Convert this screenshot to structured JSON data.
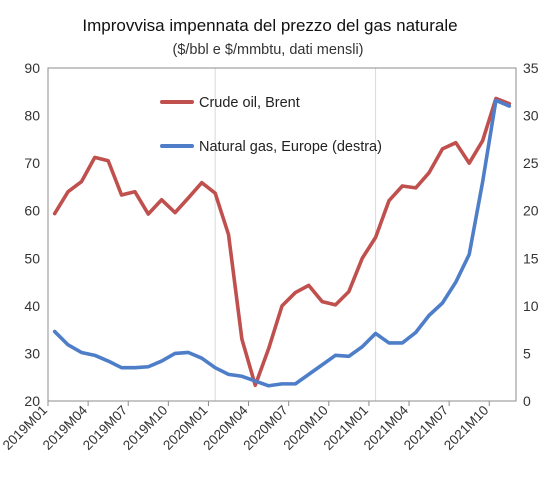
{
  "chart_data": {
    "type": "line",
    "title": "Improvvisa impennata del prezzo del gas naturale",
    "subtitle": "($/bbl e $/mmbtu, dati mensli)",
    "categories": [
      "2019M01",
      "2019M02",
      "2019M03",
      "2019M04",
      "2019M05",
      "2019M06",
      "2019M07",
      "2019M08",
      "2019M09",
      "2019M10",
      "2019M11",
      "2019M12",
      "2020M01",
      "2020M02",
      "2020M03",
      "2020M04",
      "2020M05",
      "2020M06",
      "2020M07",
      "2020M08",
      "2020M09",
      "2020M10",
      "2020M11",
      "2020M12",
      "2021M01",
      "2021M02",
      "2021M03",
      "2021M04",
      "2021M05",
      "2021M06",
      "2021M07",
      "2021M08",
      "2021M09",
      "2021M10",
      "2021M11"
    ],
    "x_tick_labels": [
      "2019M01",
      "2019M04",
      "2019M07",
      "2019M10",
      "2020M01",
      "2020M04",
      "2020M07",
      "2020M10",
      "2021M01",
      "2021M04",
      "2021M07",
      "2021M10"
    ],
    "y_left": {
      "ylim": [
        20,
        90
      ],
      "ticks": [
        "20",
        "30",
        "40",
        "50",
        "60",
        "70",
        "80",
        "90"
      ]
    },
    "y_right": {
      "ylim": [
        0,
        35
      ],
      "ticks": [
        "0",
        "5",
        "10",
        "15",
        "20",
        "25",
        "30",
        "35"
      ]
    },
    "series": [
      {
        "name": "Crude oil, Brent",
        "axis": "left",
        "color": "#c0504d",
        "values": [
          59.4,
          64.0,
          66.1,
          71.2,
          70.5,
          63.3,
          64.0,
          59.3,
          62.3,
          59.6,
          62.7,
          65.9,
          63.7,
          55.0,
          33.0,
          23.3,
          31.0,
          40.0,
          42.8,
          44.3,
          40.9,
          40.2,
          43.0,
          50.0,
          54.4,
          62.1,
          65.2,
          64.8,
          68.0,
          73.0,
          74.3,
          70.0,
          74.7,
          83.6,
          82.5
        ]
      },
      {
        "name": "Natural gas, Europe (destra)",
        "axis": "right",
        "color": "#4f7ec9",
        "values": [
          7.3,
          5.9,
          5.1,
          4.8,
          4.2,
          3.5,
          3.5,
          3.6,
          4.2,
          5.0,
          5.1,
          4.5,
          3.5,
          2.8,
          2.6,
          2.1,
          1.6,
          1.8,
          1.8,
          2.8,
          3.8,
          4.8,
          4.7,
          5.7,
          7.1,
          6.1,
          6.1,
          7.2,
          9.0,
          10.3,
          12.5,
          15.4,
          23.0,
          31.6,
          31.0
        ]
      }
    ],
    "grid": "vertical lines at January of each year",
    "legend_placement": "top-left"
  }
}
